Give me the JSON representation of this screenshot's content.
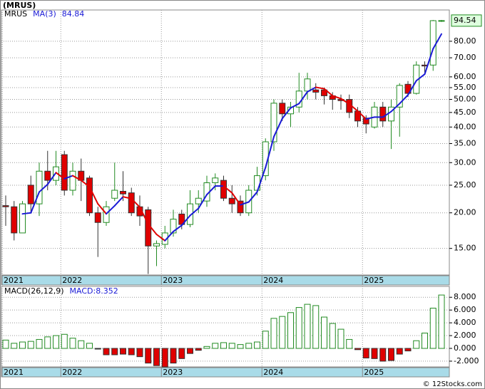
{
  "title": "(MRUS)",
  "copyright": "© 12Stocks.com",
  "chart_data": [
    {
      "type": "candlestick",
      "name": "MRUS",
      "categories": [
        "2021",
        null,
        null,
        null,
        null,
        null,
        null,
        "2022",
        null,
        null,
        null,
        null,
        null,
        null,
        null,
        null,
        null,
        null,
        null,
        "2023",
        null,
        null,
        null,
        null,
        null,
        null,
        null,
        null,
        null,
        null,
        null,
        "2024",
        null,
        null,
        null,
        null,
        null,
        null,
        null,
        null,
        null,
        null,
        null,
        "2025",
        null,
        null,
        null,
        null,
        null,
        null,
        null,
        null,
        null
      ],
      "open": [
        21.2,
        21,
        17,
        25,
        21.5,
        28,
        26,
        32,
        24,
        28,
        26.5,
        20,
        18.5,
        22.5,
        23.8,
        23.5,
        21,
        20.5,
        15.3,
        15.5,
        17,
        19.8,
        18.2,
        21.5,
        22,
        25.5,
        26,
        22.5,
        22,
        20,
        24,
        27,
        35.5,
        48.5,
        44.5,
        47,
        53.5,
        54,
        54,
        51.5,
        50,
        50,
        45.5,
        43,
        40,
        47,
        42,
        47,
        56.5,
        52.5,
        66,
        66,
        94
      ],
      "high": [
        23,
        22,
        22,
        27,
        30,
        33,
        33,
        33,
        30,
        31,
        27,
        21,
        22,
        30,
        28,
        24.5,
        23,
        21,
        16,
        18,
        20.5,
        20.5,
        24,
        24,
        27,
        27.5,
        27,
        25,
        23,
        25,
        29,
        36.5,
        50,
        50,
        49,
        62,
        62,
        57,
        55,
        53,
        52,
        52,
        47,
        44,
        49,
        49,
        50,
        57,
        58,
        68,
        68,
        95,
        95
      ],
      "low": [
        18,
        16,
        17,
        20,
        19.5,
        24,
        25,
        23,
        23,
        22,
        19.5,
        14,
        18,
        22,
        22,
        19.5,
        18,
        12.2,
        13,
        15,
        16.5,
        17.5,
        17.8,
        20,
        21,
        24,
        22,
        20,
        19.5,
        19.5,
        23,
        26,
        33,
        42,
        40,
        45,
        50,
        50,
        48,
        46,
        46,
        43,
        40,
        38,
        39.5,
        40,
        33.5,
        37,
        51,
        52,
        62,
        63,
        93.5
      ],
      "close": [
        21,
        17,
        21.5,
        21.5,
        28,
        26,
        29,
        24,
        28,
        26,
        20,
        18.5,
        21,
        24,
        23.3,
        20,
        19.5,
        15.3,
        15.6,
        17,
        19,
        18.2,
        21.5,
        22.5,
        25.5,
        26.5,
        22.5,
        21.5,
        20,
        24,
        27,
        35.5,
        48.5,
        44.5,
        47,
        53.5,
        59,
        53,
        51.5,
        50,
        49.5,
        45,
        42,
        41,
        47,
        42,
        47,
        56,
        52.5,
        66,
        65.5,
        94.48,
        94.54
      ],
      "up_color": "#228b22",
      "down_color": "#e00000",
      "ma": {
        "name": "MA(3)",
        "rising_color": "#1a1ad6",
        "falling_color": "#e00000",
        "values": [
          null,
          null,
          19.83,
          20,
          23.67,
          25.17,
          27.67,
          26.33,
          27,
          26,
          24.67,
          21.5,
          19.83,
          21.17,
          22.77,
          22.43,
          20.93,
          18.27,
          16.8,
          15.97,
          17.2,
          18.07,
          19.57,
          20.73,
          23.17,
          24.83,
          24.83,
          23.5,
          21.33,
          21.83,
          23.67,
          28.83,
          37,
          42.83,
          46.67,
          48.33,
          53.17,
          55.17,
          54.5,
          51.5,
          50.33,
          48.17,
          45.5,
          42.67,
          43.33,
          43.33,
          45.33,
          48.33,
          51.83,
          58.17,
          61.33,
          75.33,
          84.84
        ]
      },
      "ylim": [
        12.1,
        103
      ],
      "log_scale": true,
      "grid": true,
      "yticks": [
        {
          "value": 15,
          "label": "15.00"
        },
        {
          "value": 20,
          "label": "20.00"
        },
        {
          "value": 25,
          "label": "25.00"
        },
        {
          "value": 30,
          "label": "30.00"
        },
        {
          "value": 35,
          "label": "35.00"
        },
        {
          "value": 40,
          "label": "40.00"
        },
        {
          "value": 45,
          "label": "45.00"
        },
        {
          "value": 50,
          "label": "50.00"
        },
        {
          "value": 55,
          "label": "55.00"
        },
        {
          "value": 60,
          "label": "60.00"
        },
        {
          "value": 70,
          "label": "70.00"
        },
        {
          "value": 80,
          "label": "80.00"
        }
      ]
    },
    {
      "type": "bar",
      "name": "MACD(26,12,9)",
      "value_prefix": "MACD:",
      "categories": [
        "2021",
        null,
        null,
        null,
        null,
        null,
        null,
        "2022",
        null,
        null,
        null,
        null,
        null,
        null,
        null,
        null,
        null,
        null,
        null,
        "2023",
        null,
        null,
        null,
        null,
        null,
        null,
        null,
        null,
        null,
        null,
        null,
        "2024",
        null,
        null,
        null,
        null,
        null,
        null,
        null,
        null,
        null,
        null,
        null,
        "2025",
        null,
        null,
        null,
        null,
        null,
        null,
        null,
        null,
        null
      ],
      "values": [
        1.3,
        0.8,
        1.0,
        1.1,
        1.4,
        1.8,
        2.0,
        2.2,
        1.6,
        1.2,
        0.8,
        -0.1,
        -1.0,
        -1.0,
        -0.9,
        -1.0,
        -1.3,
        -2.3,
        -2.7,
        -2.9,
        -2.3,
        -1.6,
        -0.8,
        -0.3,
        0.3,
        0.8,
        0.9,
        0.8,
        0.6,
        0.8,
        1.0,
        2.7,
        4.7,
        5.0,
        5.6,
        6.4,
        6.9,
        6.7,
        4.9,
        3.9,
        3.0,
        1.4,
        -0.2,
        -1.5,
        -1.6,
        -2.0,
        -1.9,
        -0.9,
        -0.4,
        1.2,
        2.4,
        6.3,
        8.352
      ],
      "up_color": "#228b22",
      "down_color": "#e00000",
      "label_color": "#1a1ad6",
      "ylim": [
        -2.9,
        9.7
      ],
      "grid": true,
      "yticks": [
        {
          "value": -2,
          "label": "-2.000"
        },
        {
          "value": 0,
          "label": "0.000"
        },
        {
          "value": 2,
          "label": "2.000"
        },
        {
          "value": 4,
          "label": "4.000"
        },
        {
          "value": 6,
          "label": "6.000"
        },
        {
          "value": 8,
          "label": "8.000"
        }
      ]
    }
  ]
}
